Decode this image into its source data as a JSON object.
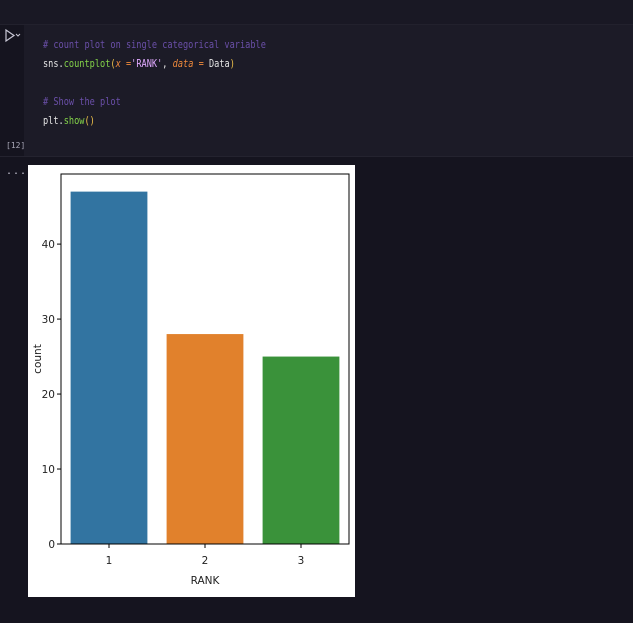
{
  "cell": {
    "execution_count": "[12]",
    "code_lines": [
      {
        "parts": [
          {
            "cls": "cm",
            "text": "# count plot on single categorical variable"
          }
        ]
      },
      {
        "parts": [
          {
            "cls": "",
            "text": "sns."
          },
          {
            "cls": "fn",
            "text": "countplot"
          },
          {
            "cls": "pa",
            "text": "("
          },
          {
            "cls": "kw",
            "text": "x"
          },
          {
            "cls": "op",
            "text": " ="
          },
          {
            "cls": "st",
            "text": "'RANK'"
          },
          {
            "cls": "",
            "text": ", "
          },
          {
            "cls": "kw",
            "text": "data"
          },
          {
            "cls": "op",
            "text": " = "
          },
          {
            "cls": "",
            "text": "Data"
          },
          {
            "cls": "pa",
            "text": ")"
          }
        ]
      },
      {
        "parts": []
      },
      {
        "parts": [
          {
            "cls": "cm",
            "text": "# Show the plot"
          }
        ]
      },
      {
        "parts": [
          {
            "cls": "",
            "text": "plt."
          },
          {
            "cls": "fn",
            "text": "show"
          },
          {
            "cls": "pa",
            "text": "()"
          }
        ]
      }
    ]
  },
  "output": {
    "more_label": "..."
  },
  "chart_data": {
    "type": "bar",
    "categories": [
      "1",
      "2",
      "3"
    ],
    "values": [
      47,
      28,
      25
    ],
    "colors": [
      "#3274a1",
      "#e1812c",
      "#3a923a"
    ],
    "title": "",
    "xlabel": "RANK",
    "ylabel": "count",
    "ylim": [
      0,
      49.35
    ],
    "yticks": [
      0,
      10,
      20,
      30,
      40
    ],
    "grid": false
  }
}
